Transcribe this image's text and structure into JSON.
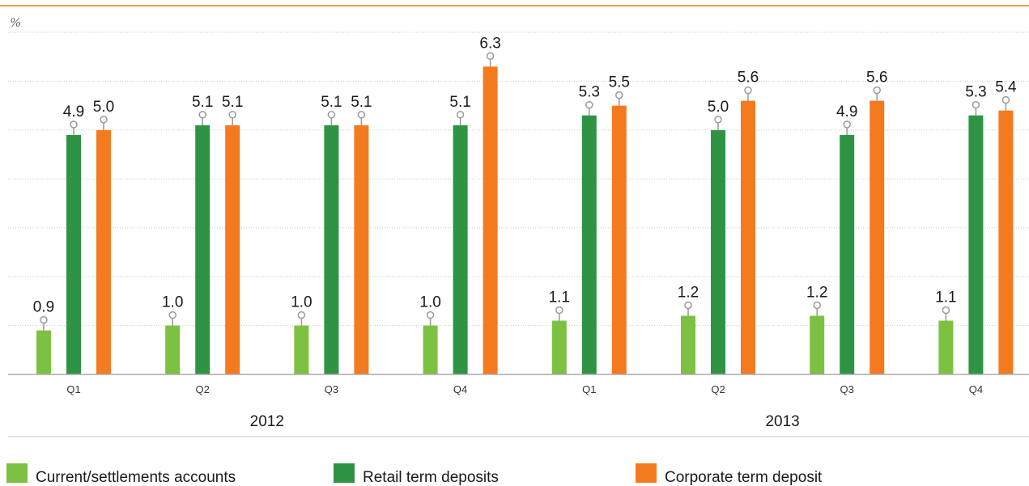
{
  "chart_data": {
    "type": "bar",
    "ylabel": "%",
    "ylim": [
      0,
      7
    ],
    "grid": true,
    "legend_position": "bottom",
    "groups": [
      {
        "label": "2012",
        "categories": [
          "Q1",
          "Q2",
          "Q3",
          "Q4"
        ]
      },
      {
        "label": "2013",
        "categories": [
          "Q1",
          "Q2",
          "Q3",
          "Q4"
        ]
      }
    ],
    "categories": [
      "Q1",
      "Q2",
      "Q3",
      "Q4",
      "Q1",
      "Q2",
      "Q3",
      "Q4"
    ],
    "series": [
      {
        "name": "Current/settlements accounts",
        "color": "#7dc142",
        "values": [
          0.9,
          1.0,
          1.0,
          1.0,
          1.1,
          1.2,
          1.2,
          1.1
        ],
        "labels": [
          "0.9",
          "1.0",
          "1.0",
          "1.0",
          "1.1",
          "1.2",
          "1.2",
          "1.1"
        ]
      },
      {
        "name": "Retail term deposits",
        "color": "#2e9444",
        "values": [
          4.9,
          5.1,
          5.1,
          5.1,
          5.3,
          5.0,
          4.9,
          5.3
        ],
        "labels": [
          "4.9",
          "5.1",
          "5.1",
          "5.1",
          "5.3",
          "5.0",
          "4.9",
          "5.3"
        ]
      },
      {
        "name": "Corporate term deposit",
        "color": "#f47a20",
        "values": [
          5.0,
          5.1,
          5.1,
          6.3,
          5.5,
          5.6,
          5.6,
          5.4
        ],
        "labels": [
          "5.0",
          "5.1",
          "5.1",
          "6.3",
          "5.5",
          "5.6",
          "5.6",
          "5.4"
        ]
      }
    ],
    "colors": {
      "top_rule": "#f39c4a",
      "grid": "#cccccc",
      "axis": "#aaaaaa",
      "marker": "#999999"
    }
  }
}
